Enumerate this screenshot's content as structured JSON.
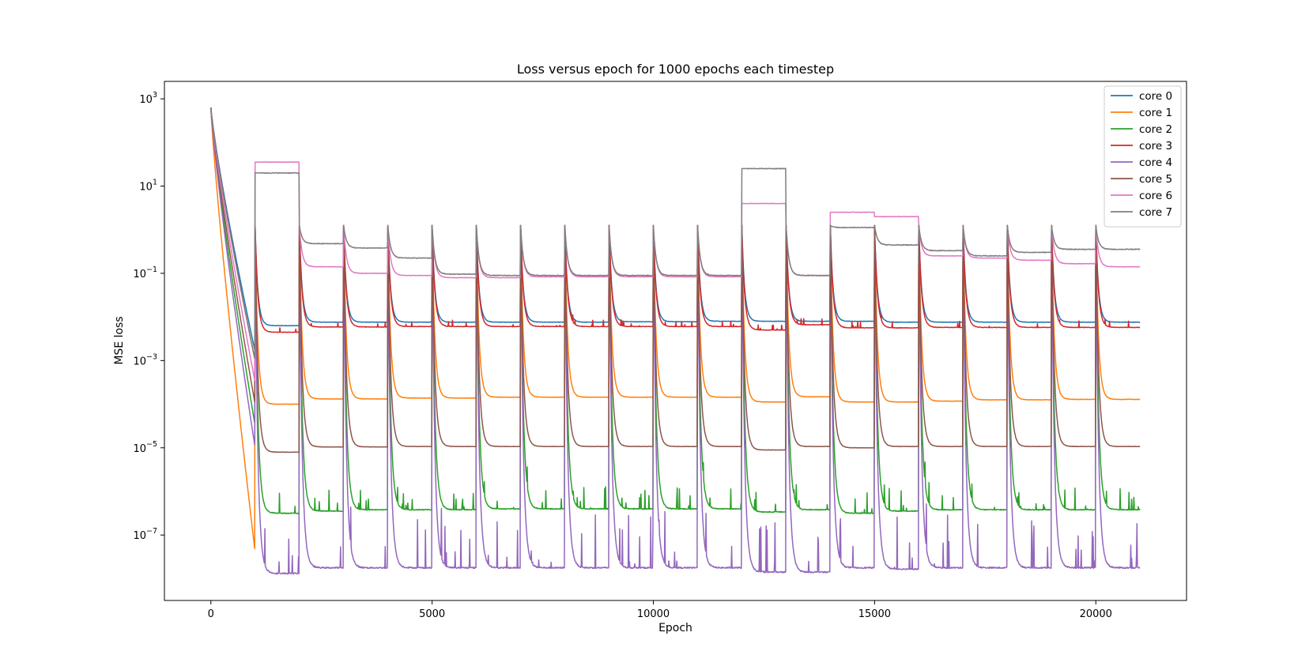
{
  "chart_data": {
    "type": "line",
    "title": "Loss versus epoch for 1000 epochs each timestep",
    "xlabel": "Epoch",
    "ylabel": "MSE loss",
    "xlim": [
      -1050,
      22050
    ],
    "ylim_log10": [
      -8.5,
      3.4
    ],
    "x_scale": "linear",
    "y_scale": "log",
    "grid": false,
    "legend_position": "upper right",
    "x_ticks": [
      {
        "value": 0,
        "label": "0"
      },
      {
        "value": 5000,
        "label": "5000"
      },
      {
        "value": 10000,
        "label": "10000"
      },
      {
        "value": 15000,
        "label": "15000"
      },
      {
        "value": 20000,
        "label": "20000"
      }
    ],
    "y_ticks": [
      {
        "exp": 3,
        "base": "10",
        "sup": "3"
      },
      {
        "exp": 1,
        "base": "10",
        "sup": "1"
      },
      {
        "exp": -1,
        "base": "10",
        "sup": "−1"
      },
      {
        "exp": -3,
        "base": "10",
        "sup": "−3"
      },
      {
        "exp": -5,
        "base": "10",
        "sup": "−5"
      },
      {
        "exp": -7,
        "base": "10",
        "sup": "−7"
      }
    ],
    "epochs_per_timestep": 1000,
    "timesteps": 21,
    "series": [
      {
        "name": "core 0",
        "color": "#1f77b4",
        "base_log10": [
          -2.8,
          -2.2,
          -2.12,
          -2.12,
          -2.12,
          -2.12,
          -2.12,
          -2.12,
          -2.12,
          -2.11,
          -2.11,
          -2.1,
          -2.1,
          -2.1,
          -2.1,
          -2.12,
          -2.12,
          -2.12,
          -2.12,
          -2.12,
          -2.12
        ],
        "noise": 0.005,
        "spikes": 0
      },
      {
        "name": "core 1",
        "color": "#ff7f0e",
        "base_log10": [
          -7.4,
          -4.0,
          -3.88,
          -3.88,
          -3.86,
          -3.86,
          -3.84,
          -3.84,
          -3.84,
          -3.84,
          -3.84,
          -3.84,
          -3.95,
          -3.83,
          -3.95,
          -3.95,
          -3.93,
          -3.9,
          -3.9,
          -3.89,
          -3.89
        ],
        "noise": 0.004,
        "spikes": 0
      },
      {
        "name": "core 2",
        "color": "#2ca02c",
        "base_log10": [
          -4.5,
          -6.5,
          -6.45,
          -6.42,
          -6.42,
          -6.42,
          -6.4,
          -6.4,
          -6.4,
          -6.4,
          -6.4,
          -6.4,
          -6.47,
          -6.42,
          -6.5,
          -6.45,
          -6.42,
          -6.42,
          -6.42,
          -6.42,
          -6.42
        ],
        "noise": 0.01,
        "spikes": 0.5
      },
      {
        "name": "core 3",
        "color": "#d62728",
        "base_log10": [
          -3.0,
          -2.35,
          -2.23,
          -2.23,
          -2.22,
          -2.22,
          -2.22,
          -2.22,
          -2.22,
          -2.22,
          -2.22,
          -2.22,
          -2.3,
          -2.18,
          -2.25,
          -2.25,
          -2.24,
          -2.24,
          -2.24,
          -2.24,
          -2.24
        ],
        "noise": 0.005,
        "spikes": 0.15
      },
      {
        "name": "core 4",
        "color": "#9467bd",
        "base_log10": [
          -5.0,
          -7.88,
          -7.75,
          -7.75,
          -7.75,
          -7.75,
          -7.75,
          -7.75,
          -7.75,
          -7.75,
          -7.75,
          -7.75,
          -7.85,
          -7.85,
          -7.75,
          -7.78,
          -7.75,
          -7.75,
          -7.75,
          -7.75,
          -7.75
        ],
        "noise": 0.015,
        "spikes": 1.2
      },
      {
        "name": "core 5",
        "color": "#8c564b",
        "base_log10": [
          -4.0,
          -5.1,
          -4.98,
          -4.98,
          -4.97,
          -4.97,
          -4.97,
          -4.97,
          -4.97,
          -4.97,
          -4.97,
          -4.97,
          -5.05,
          -4.97,
          -5.0,
          -4.97,
          -4.97,
          -4.97,
          -4.97,
          -4.97,
          -4.97
        ],
        "noise": 0.004,
        "spikes": 0
      },
      {
        "name": "core 6",
        "color": "#e377c2",
        "base_log10": [
          -3.5,
          1.55,
          -0.85,
          -1.0,
          -1.05,
          -1.1,
          -1.1,
          -1.08,
          -1.08,
          -1.08,
          -1.08,
          -1.08,
          0.6,
          -1.05,
          0.4,
          0.3,
          -0.6,
          -0.65,
          -0.7,
          -0.78,
          -0.85
        ],
        "noise": 0.005,
        "spikes": 0
      },
      {
        "name": "core 7",
        "color": "#7f7f7f",
        "base_log10": [
          -3.0,
          1.3,
          -0.32,
          -0.42,
          -0.65,
          -1.02,
          -1.05,
          -1.05,
          -1.05,
          -1.05,
          -1.05,
          -1.05,
          1.4,
          -1.05,
          0.05,
          -0.35,
          -0.48,
          -0.6,
          -0.52,
          -0.45,
          -0.45
        ],
        "noise": 0.008,
        "spikes": 0
      }
    ]
  }
}
